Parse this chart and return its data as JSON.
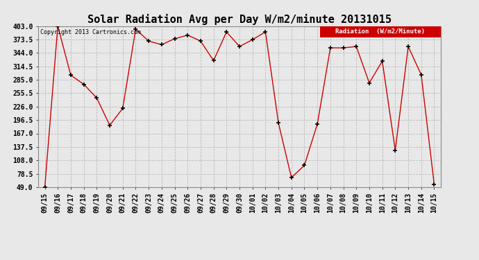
{
  "title": "Solar Radiation Avg per Day W/m2/minute 20131015",
  "copyright_text": "Copyright 2013 Cartronics.com",
  "legend_label": "Radiation  (W/m2/Minute)",
  "dates": [
    "09/15",
    "09/16",
    "09/17",
    "09/18",
    "09/19",
    "09/20",
    "09/21",
    "09/22",
    "09/23",
    "09/24",
    "09/25",
    "09/26",
    "09/27",
    "09/28",
    "09/29",
    "09/30",
    "10/01",
    "10/02",
    "10/03",
    "10/04",
    "10/05",
    "10/06",
    "10/07",
    "10/08",
    "10/09",
    "10/10",
    "10/11",
    "10/12",
    "10/13",
    "10/14",
    "10/15"
  ],
  "values": [
    49.0,
    403.0,
    295.0,
    275.0,
    245.0,
    185.0,
    222.0,
    396.0,
    370.0,
    362.0,
    375.0,
    383.0,
    370.0,
    327.0,
    390.0,
    358.0,
    373.0,
    390.0,
    190.0,
    70.0,
    97.0,
    188.0,
    355.0,
    355.0,
    358.0,
    278.0,
    326.0,
    130.0,
    358.0,
    296.0,
    55.0
  ],
  "yticks": [
    49.0,
    78.5,
    108.0,
    137.5,
    167.0,
    196.5,
    226.0,
    255.5,
    285.0,
    314.5,
    344.0,
    373.5,
    403.0
  ],
  "ylim": [
    49.0,
    403.0
  ],
  "line_color": "#cc0000",
  "marker_color": "black",
  "grid_color": "#bbbbbb",
  "background_color": "#e8e8e8",
  "title_fontsize": 11,
  "tick_fontsize": 7,
  "copyright_fontsize": 6,
  "legend_bg_color": "#cc0000",
  "legend_text_color": "white",
  "legend_fontsize": 6.5
}
